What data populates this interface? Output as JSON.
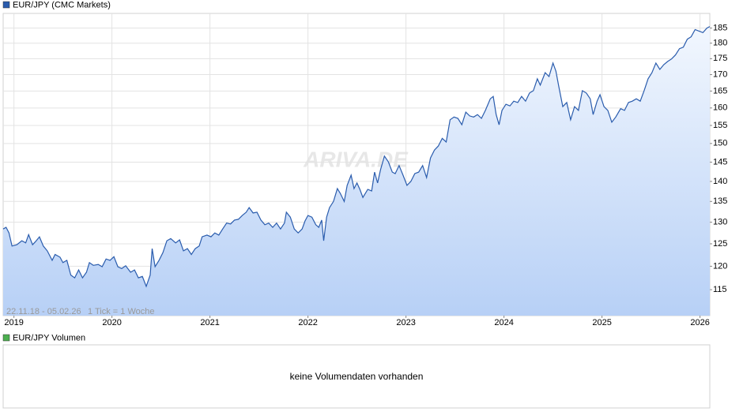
{
  "chart_data": {
    "type": "line",
    "log_scale": true,
    "grid": true,
    "date_range": "22.11.18 - 05.02.26",
    "tick_info": "1 Tick = 1 Woche",
    "watermark": "ARIVA.DE",
    "xlim": [
      2018.89,
      2026.1
    ],
    "xticks": [
      2019,
      2020,
      2021,
      2022,
      2023,
      2024,
      2025,
      2026
    ],
    "ylim": [
      109.7,
      190
    ],
    "yticks": [
      115,
      120,
      125,
      130,
      135,
      140,
      145,
      150,
      155,
      160,
      165,
      170,
      175,
      180,
      185
    ],
    "x": [
      2018.89,
      2018.92,
      2018.95,
      2018.98,
      2019.03,
      2019.08,
      2019.12,
      2019.15,
      2019.19,
      2019.22,
      2019.26,
      2019.3,
      2019.34,
      2019.39,
      2019.42,
      2019.47,
      2019.5,
      2019.54,
      2019.58,
      2019.62,
      2019.66,
      2019.7,
      2019.74,
      2019.77,
      2019.81,
      2019.86,
      2019.9,
      2019.94,
      2019.98,
      2020.02,
      2020.06,
      2020.1,
      2020.14,
      2020.19,
      2020.23,
      2020.27,
      2020.31,
      2020.35,
      2020.39,
      2020.41,
      2020.44,
      2020.48,
      2020.52,
      2020.56,
      2020.6,
      2020.65,
      2020.69,
      2020.73,
      2020.77,
      2020.81,
      2020.85,
      2020.89,
      2020.92,
      2020.97,
      2021.01,
      2021.05,
      2021.09,
      2021.13,
      2021.17,
      2021.21,
      2021.25,
      2021.29,
      2021.33,
      2021.37,
      2021.4,
      2021.44,
      2021.48,
      2021.52,
      2021.56,
      2021.6,
      2021.64,
      2021.68,
      2021.72,
      2021.76,
      2021.78,
      2021.82,
      2021.86,
      2021.9,
      2021.94,
      2021.97,
      2022.0,
      2022.04,
      2022.08,
      2022.11,
      2022.14,
      2022.16,
      2022.19,
      2022.22,
      2022.26,
      2022.3,
      2022.33,
      2022.37,
      2022.4,
      2022.44,
      2022.47,
      2022.5,
      2022.53,
      2022.56,
      2022.61,
      2022.65,
      2022.68,
      2022.71,
      2022.74,
      2022.78,
      2022.82,
      2022.86,
      2022.89,
      2022.93,
      2022.97,
      2023.01,
      2023.05,
      2023.09,
      2023.13,
      2023.17,
      2023.21,
      2023.25,
      2023.29,
      2023.33,
      2023.37,
      2023.41,
      2023.45,
      2023.49,
      2023.53,
      2023.57,
      2023.61,
      2023.65,
      2023.69,
      2023.73,
      2023.77,
      2023.81,
      2023.86,
      2023.89,
      2023.92,
      2023.95,
      2023.98,
      2024.02,
      2024.06,
      2024.1,
      2024.14,
      2024.18,
      2024.22,
      2024.26,
      2024.3,
      2024.34,
      2024.37,
      2024.42,
      2024.46,
      2024.5,
      2024.53,
      2024.56,
      2024.6,
      2024.64,
      2024.68,
      2024.72,
      2024.76,
      2024.8,
      2024.84,
      2024.88,
      2024.91,
      2024.95,
      2024.98,
      2025.02,
      2025.06,
      2025.1,
      2025.14,
      2025.19,
      2025.23,
      2025.27,
      2025.31,
      2025.35,
      2025.39,
      2025.43,
      2025.47,
      2025.51,
      2025.55,
      2025.59,
      2025.63,
      2025.67,
      2025.71,
      2025.75,
      2025.79,
      2025.83,
      2025.87,
      2025.91,
      2025.95,
      2025.99,
      2026.03,
      2026.07,
      2026.1
    ],
    "series": [
      {
        "name": "EUR/JPY (CMC Markets)",
        "color": "#2a5cad",
        "values": [
          128.4,
          128.8,
          127.5,
          124.5,
          124.8,
          125.7,
          125.2,
          127.1,
          124.8,
          125.5,
          126.6,
          124.5,
          123.4,
          121.3,
          122.6,
          122.0,
          120.8,
          121.3,
          118.1,
          117.5,
          119.2,
          117.5,
          118.7,
          120.8,
          120.2,
          120.4,
          119.9,
          121.6,
          121.3,
          122.1,
          119.9,
          119.5,
          120.1,
          118.7,
          119.2,
          117.5,
          117.8,
          115.7,
          118.1,
          123.9,
          119.9,
          121.3,
          123.0,
          125.7,
          126.2,
          125.2,
          125.9,
          123.4,
          123.9,
          122.6,
          123.9,
          124.5,
          126.6,
          127.0,
          126.6,
          127.5,
          127.0,
          128.4,
          129.8,
          129.6,
          130.5,
          130.7,
          131.6,
          132.4,
          133.5,
          132.2,
          132.4,
          130.5,
          129.4,
          129.8,
          128.8,
          129.8,
          128.4,
          129.8,
          132.4,
          131.2,
          128.4,
          127.5,
          128.4,
          130.3,
          131.6,
          131.2,
          129.4,
          128.8,
          130.5,
          125.7,
          131.2,
          133.5,
          135.0,
          138.2,
          137.0,
          135.0,
          139.0,
          141.6,
          138.2,
          139.6,
          138.0,
          136.0,
          138.0,
          137.6,
          142.4,
          139.6,
          143.0,
          146.6,
          145.1,
          142.4,
          142.0,
          144.1,
          141.6,
          139.0,
          140.0,
          142.0,
          142.4,
          144.1,
          141.0,
          146.1,
          148.2,
          149.3,
          151.4,
          150.4,
          156.6,
          157.4,
          157.0,
          155.2,
          158.8,
          157.7,
          157.4,
          158.1,
          157.0,
          159.3,
          162.7,
          163.4,
          158.1,
          155.2,
          159.3,
          161.1,
          160.6,
          162.0,
          161.6,
          163.4,
          162.0,
          164.4,
          165.1,
          168.7,
          166.8,
          170.6,
          169.4,
          173.6,
          171.1,
          166.3,
          160.4,
          161.6,
          156.6,
          160.4,
          159.3,
          165.1,
          164.4,
          162.7,
          158.1,
          162.0,
          163.9,
          160.4,
          159.3,
          155.9,
          157.4,
          159.8,
          159.3,
          161.6,
          162.0,
          162.7,
          162.0,
          165.1,
          168.7,
          170.6,
          173.6,
          171.6,
          173.1,
          174.1,
          174.9,
          176.2,
          178.2,
          178.7,
          181.3,
          182.1,
          184.5,
          184.0,
          183.5,
          185.0,
          185.5
        ]
      }
    ]
  },
  "volume_panel": {
    "legend": "EUR/JPY Volumen",
    "message": "keine Volumendaten vorhanden",
    "color": "#4caf50"
  }
}
